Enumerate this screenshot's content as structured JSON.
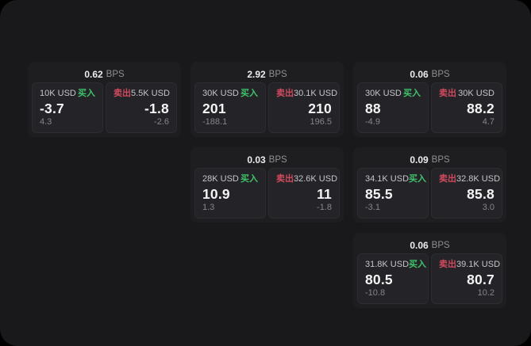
{
  "labels": {
    "unit": "BPS",
    "buy": "买入",
    "sell": "卖出"
  },
  "colors": {
    "buy": "#3fc36b",
    "sell": "#cf4a5e",
    "page_bg": "#19191b",
    "card_bg": "#1e1e20",
    "panel_bg": "#242428"
  },
  "cards": [
    {
      "bps": "0.62",
      "col": 1,
      "row": 1,
      "buy": {
        "amount": "10K USD",
        "value": "-3.7",
        "sub": "4.3"
      },
      "sell": {
        "amount": "5.5K USD",
        "value": "-1.8",
        "sub": "-2.6"
      }
    },
    {
      "bps": "2.92",
      "col": 2,
      "row": 1,
      "buy": {
        "amount": "30K USD",
        "value": "201",
        "sub": "-188.1"
      },
      "sell": {
        "amount": "30.1K USD",
        "value": "210",
        "sub": "196.5"
      }
    },
    {
      "bps": "0.06",
      "col": 3,
      "row": 1,
      "buy": {
        "amount": "30K USD",
        "value": "88",
        "sub": "-4.9"
      },
      "sell": {
        "amount": "30K USD",
        "value": "88.2",
        "sub": "4.7"
      }
    },
    {
      "bps": "0.03",
      "col": 2,
      "row": 2,
      "buy": {
        "amount": "28K USD",
        "value": "10.9",
        "sub": "1.3"
      },
      "sell": {
        "amount": "32.6K USD",
        "value": "11",
        "sub": "-1.8"
      }
    },
    {
      "bps": "0.09",
      "col": 3,
      "row": 2,
      "buy": {
        "amount": "34.1K USD",
        "value": "85.5",
        "sub": "-3.1"
      },
      "sell": {
        "amount": "32.8K USD",
        "value": "85.8",
        "sub": "3.0"
      }
    },
    {
      "bps": "0.06",
      "col": 3,
      "row": 3,
      "buy": {
        "amount": "31.8K USD",
        "value": "80.5",
        "sub": "-10.8"
      },
      "sell": {
        "amount": "39.1K USD",
        "value": "80.7",
        "sub": "10.2"
      }
    }
  ]
}
